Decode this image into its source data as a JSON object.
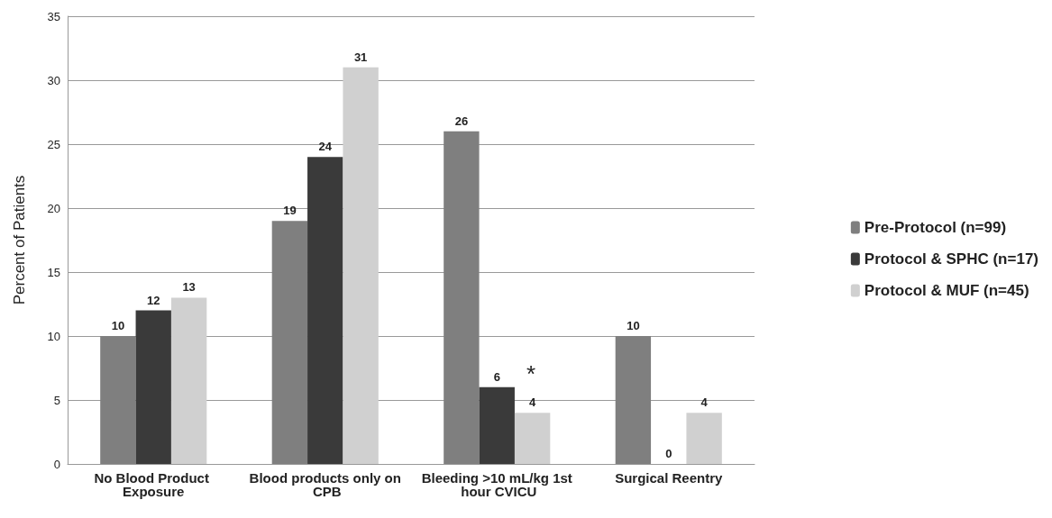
{
  "chart_data": {
    "type": "bar",
    "ylabel": "Percent of Patients",
    "categories": [
      "No Blood Product Exposure",
      "Blood products only on CPB",
      "Bleeding >10 mL/kg 1st hour CVICU",
      "Surgical Reentry"
    ],
    "series": [
      {
        "name": "Pre-Protocol (n=99)",
        "color": "#7f7f7f",
        "values": [
          10,
          19,
          26,
          10
        ]
      },
      {
        "name": "Protocol & SPHC (n=17)",
        "color": "#3a3a3a",
        "values": [
          12,
          24,
          6,
          0
        ]
      },
      {
        "name": "Protocol & MUF (n=45)",
        "color": "#d0d0d0",
        "values": [
          13,
          31,
          4,
          4
        ]
      }
    ],
    "ylim": [
      0,
      35
    ],
    "yticks": [
      0,
      5,
      10,
      15,
      20,
      25,
      30,
      35
    ],
    "grid": "y",
    "legend": "right",
    "data_labels": true,
    "annotations": [
      "*"
    ]
  }
}
